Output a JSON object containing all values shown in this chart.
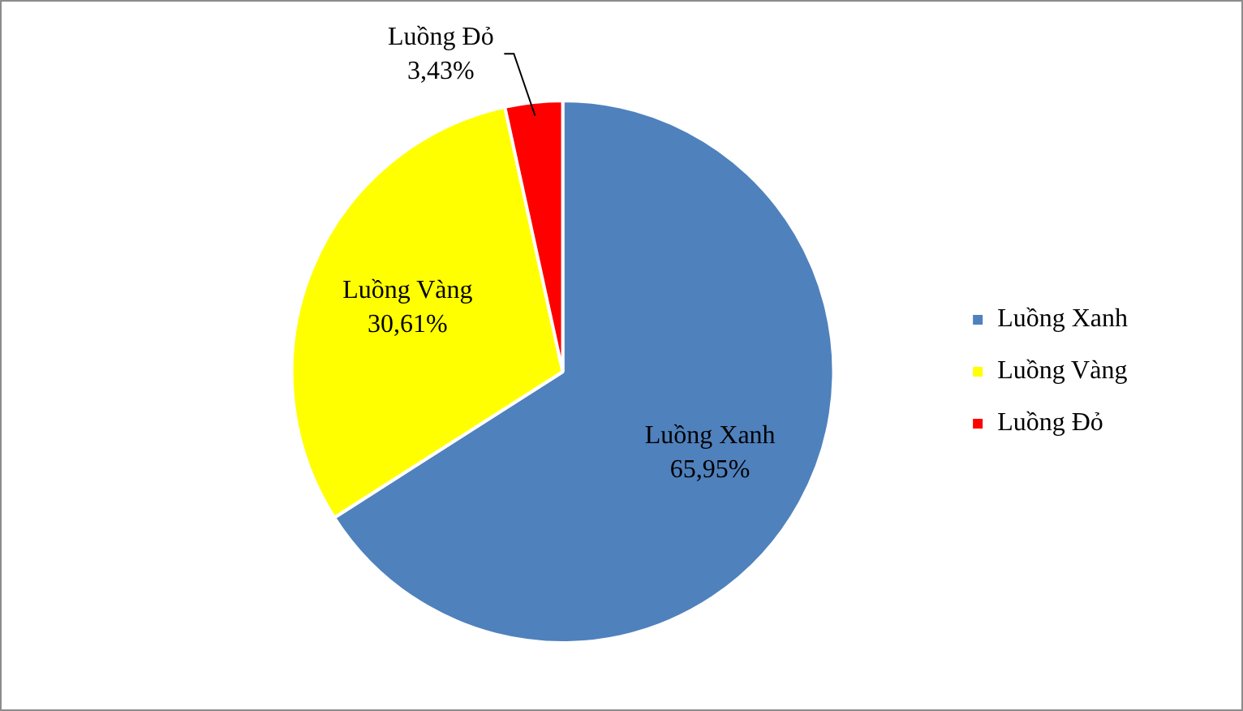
{
  "chart_data": {
    "type": "pie",
    "categories": [
      "Luồng Xanh",
      "Luồng Vàng",
      "Luồng Đỏ"
    ],
    "values": [
      65.95,
      30.61,
      3.43
    ],
    "colors": [
      "#4f81bd",
      "#ffff00",
      "#ff0000"
    ],
    "value_labels": [
      "65,95%",
      "30,61%",
      "3,43%"
    ],
    "legend": "right"
  }
}
